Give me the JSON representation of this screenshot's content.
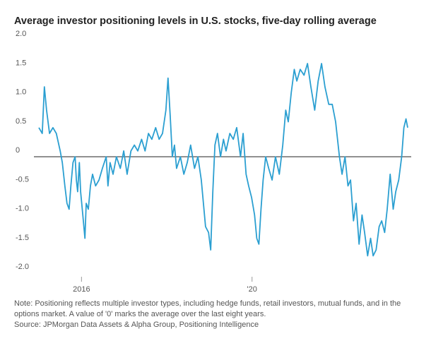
{
  "chart_data": {
    "type": "line",
    "title": "Average investor positioning levels in U.S. stocks, five-day rolling average",
    "note": "Note: Positioning reflects multiple investor types, including hedge funds, retail investors, mutual funds, and in the options market. A value of '0' marks the average over the last eight years.",
    "source": "Source: JPMorgan Data Assets & Alpha Group, Positioning Intelligence",
    "x": [
      2015.0,
      2015.08,
      2015.13,
      2015.18,
      2015.25,
      2015.33,
      2015.41,
      2015.5,
      2015.55,
      2015.61,
      2015.66,
      2015.71,
      2015.75,
      2015.8,
      2015.85,
      2015.88,
      2015.91,
      2015.95,
      2015.98,
      2016.03,
      2016.08,
      2016.11,
      2016.16,
      2016.21,
      2016.26,
      2016.33,
      2016.41,
      2016.49,
      2016.58,
      2016.62,
      2016.67,
      2016.74,
      2016.82,
      2016.91,
      2016.99,
      2017.07,
      2017.16,
      2017.24,
      2017.32,
      2017.41,
      2017.49,
      2017.57,
      2017.65,
      2017.74,
      2017.82,
      2017.9,
      2017.98,
      2018.03,
      2018.08,
      2018.13,
      2018.18,
      2018.23,
      2018.32,
      2018.4,
      2018.48,
      2018.56,
      2018.65,
      2018.73,
      2018.81,
      2018.86,
      2018.91,
      2018.98,
      2019.03,
      2019.08,
      2019.13,
      2019.19,
      2019.26,
      2019.33,
      2019.39,
      2019.48,
      2019.56,
      2019.64,
      2019.73,
      2019.79,
      2019.86,
      2019.92,
      2019.99,
      2020.06,
      2020.11,
      2020.16,
      2020.21,
      2020.26,
      2020.32,
      2020.39,
      2020.47,
      2020.55,
      2020.64,
      2020.72,
      2020.79,
      2020.85,
      2020.92,
      2020.99,
      2021.05,
      2021.13,
      2021.22,
      2021.3,
      2021.38,
      2021.47,
      2021.55,
      2021.63,
      2021.71,
      2021.8,
      2021.88,
      2021.96,
      2022.05,
      2022.11,
      2022.18,
      2022.25,
      2022.31,
      2022.38,
      2022.44,
      2022.51,
      2022.58,
      2022.64,
      2022.71,
      2022.78,
      2022.84,
      2022.91,
      2022.98,
      2023.04,
      2023.11,
      2023.17,
      2023.24,
      2023.31,
      2023.37,
      2023.44,
      2023.51,
      2023.56,
      2023.61,
      2023.65
    ],
    "series": [
      {
        "color": "#2b9fd1",
        "values": [
          0.5,
          0.4,
          1.2,
          0.8,
          0.4,
          0.5,
          0.4,
          0.1,
          -0.1,
          -0.5,
          -0.8,
          -0.9,
          -0.5,
          -0.1,
          0.0,
          -0.4,
          -0.6,
          -0.1,
          -0.6,
          -1.0,
          -1.4,
          -0.8,
          -0.9,
          -0.5,
          -0.3,
          -0.5,
          -0.4,
          -0.2,
          0.0,
          -0.5,
          -0.1,
          -0.3,
          0.0,
          -0.2,
          0.1,
          -0.3,
          0.1,
          0.2,
          0.1,
          0.3,
          0.1,
          0.4,
          0.3,
          0.5,
          0.3,
          0.4,
          0.8,
          1.35,
          0.7,
          0.0,
          0.2,
          -0.2,
          0.0,
          -0.3,
          -0.1,
          0.2,
          -0.2,
          0.0,
          -0.4,
          -0.8,
          -1.2,
          -1.3,
          -1.6,
          -0.6,
          0.2,
          0.4,
          0.0,
          0.3,
          0.1,
          0.4,
          0.3,
          0.5,
          0.0,
          0.4,
          -0.3,
          -0.5,
          -0.7,
          -1.0,
          -1.4,
          -1.5,
          -0.9,
          -0.4,
          0.0,
          -0.2,
          -0.4,
          0.0,
          -0.3,
          0.2,
          0.8,
          0.6,
          1.1,
          1.5,
          1.3,
          1.5,
          1.4,
          1.6,
          1.2,
          0.8,
          1.3,
          1.6,
          1.2,
          0.9,
          0.9,
          0.6,
          0.0,
          -0.3,
          0.0,
          -0.5,
          -0.4,
          -1.1,
          -0.8,
          -1.5,
          -1.0,
          -1.3,
          -1.7,
          -1.4,
          -1.7,
          -1.6,
          -1.2,
          -1.1,
          -1.3,
          -0.9,
          -0.3,
          -0.9,
          -0.6,
          -0.4,
          0.0,
          0.5,
          0.65,
          0.5
        ]
      }
    ],
    "xlim": [
      2015,
      2023.7
    ],
    "xticks": [
      2016,
      {
        "value": 2020,
        "label": "'20"
      }
    ],
    "ylim": [
      -2,
      2
    ],
    "yticks": [
      {
        "value": 2,
        "label": "2.0"
      },
      1.5,
      {
        "value": 1,
        "label": "1.0"
      },
      0.5,
      0,
      -0.5,
      {
        "value": -1,
        "label": "-1.0"
      },
      -1.5,
      {
        "value": -2,
        "label": "-2.0"
      }
    ],
    "zero_line": true
  }
}
